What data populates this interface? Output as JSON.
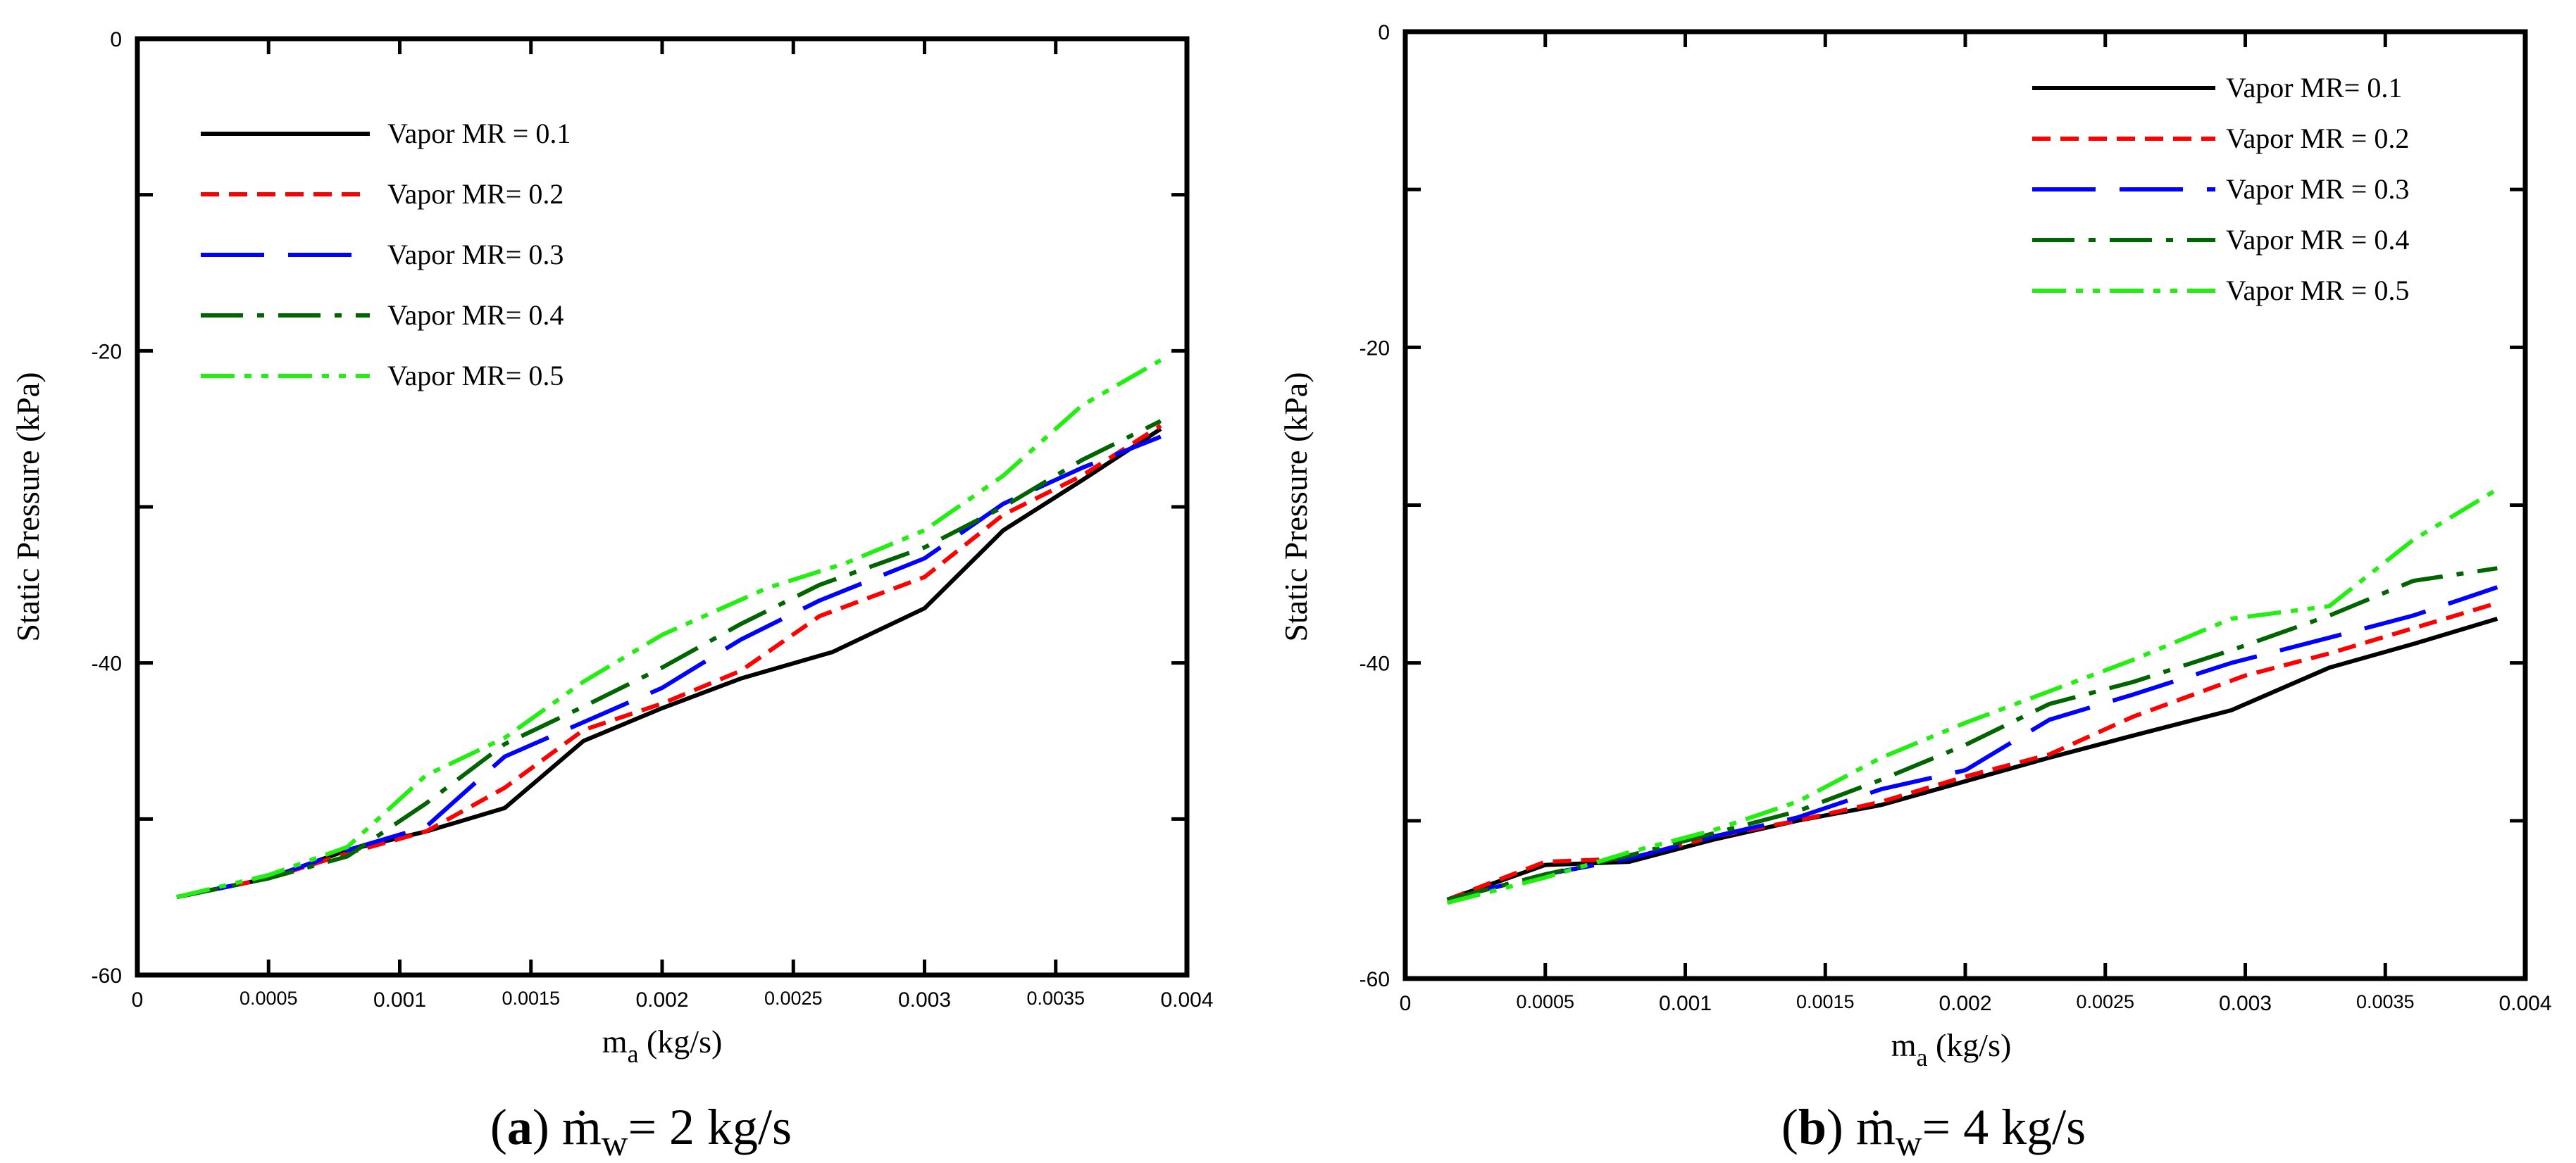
{
  "chart_data": [
    {
      "type": "line",
      "panel": "a",
      "xlabel": "m",
      "xlabel_sub": "a",
      "xlabel_unit": "(kg/s)",
      "ylabel": "Static Pressure (kPa)",
      "xlim": [
        0,
        0.004
      ],
      "ylim": [
        -60,
        0
      ],
      "x_ticks": [
        0,
        0.0005,
        0.001,
        0.0015,
        0.002,
        0.0025,
        0.003,
        0.0035,
        0.004
      ],
      "x_tick_labels": [
        "0",
        "0.0005",
        "0.001",
        "0.0015",
        "0.002",
        "0.0025",
        "0.003",
        "0.0035",
        "0.004"
      ],
      "y_ticks": [
        0,
        -10,
        -20,
        -30,
        -40,
        -50,
        -60
      ],
      "y_tick_labels": [
        "0",
        "",
        "-20",
        "",
        "-40",
        "",
        "-60"
      ],
      "caption": {
        "letter": "a",
        "text_pre": "m",
        "text_sub": "w",
        "text_post": "= 2 kg/s"
      },
      "legend_position": "top-left",
      "series": [
        {
          "name": "Vapor MR = 0.1",
          "color": "#000000",
          "dash": "",
          "x": [
            0.00015,
            0.0005,
            0.0008,
            0.0011,
            0.0014,
            0.0017,
            0.002,
            0.0023,
            0.00265,
            0.003,
            0.0033,
            0.0036,
            0.0039
          ],
          "y": [
            -55,
            -53.8,
            -52,
            -50.8,
            -49.3,
            -45,
            -42.9,
            -41,
            -39.3,
            -36.5,
            -31.5,
            -28.3,
            -25
          ]
        },
        {
          "name": "Vapor MR= 0.2",
          "color": "#ff0000",
          "dash": "26 14",
          "x": [
            0.00015,
            0.0005,
            0.0008,
            0.0011,
            0.0014,
            0.0017,
            0.002,
            0.0023,
            0.0026,
            0.003,
            0.0033,
            0.0036,
            0.0039
          ],
          "y": [
            -55,
            -53.8,
            -52.2,
            -50.8,
            -48,
            -44.3,
            -42.6,
            -40.5,
            -37,
            -34.5,
            -30.5,
            -28,
            -24.8
          ]
        },
        {
          "name": "Vapor MR= 0.3",
          "color": "#0000ff",
          "dash": "90 34",
          "x": [
            0.00015,
            0.0005,
            0.0008,
            0.0011,
            0.0014,
            0.0017,
            0.002,
            0.0023,
            0.0026,
            0.003,
            0.0033,
            0.0036,
            0.0039
          ],
          "y": [
            -55,
            -53.8,
            -52,
            -50.5,
            -46,
            -43.8,
            -41.6,
            -38.5,
            -36,
            -33.3,
            -29.8,
            -27.5,
            -25.5
          ]
        },
        {
          "name": "Vapor MR= 0.4",
          "color": "#006400",
          "dash": "60 20 10 20",
          "x": [
            0.00015,
            0.0005,
            0.0008,
            0.0011,
            0.0014,
            0.0017,
            0.002,
            0.0023,
            0.0026,
            0.003,
            0.0033,
            0.0036,
            0.0039
          ],
          "y": [
            -55,
            -53.8,
            -52.4,
            -49,
            -45.2,
            -42.8,
            -40.3,
            -37.5,
            -35,
            -32.6,
            -30,
            -27,
            -24.5
          ]
        },
        {
          "name": "Vapor MR= 0.5",
          "color": "#22ee11",
          "dash": "48 14 10 14 10 14",
          "x": [
            0.00015,
            0.0005,
            0.0008,
            0.0011,
            0.0014,
            0.0017,
            0.002,
            0.0024,
            0.0027,
            0.003,
            0.0033,
            0.0036,
            0.0039
          ],
          "y": [
            -55,
            -53.6,
            -51.8,
            -47.2,
            -44.8,
            -41.2,
            -38.2,
            -35.2,
            -33.6,
            -31.5,
            -28,
            -23.5,
            -20.6
          ]
        }
      ]
    },
    {
      "type": "line",
      "panel": "b",
      "xlabel": "m",
      "xlabel_sub": "a",
      "xlabel_unit": "(kg/s)",
      "ylabel": "Static Pressure (kPa)",
      "xlim": [
        0,
        0.004
      ],
      "ylim": [
        -60,
        0
      ],
      "x_ticks": [
        0,
        0.0005,
        0.001,
        0.0015,
        0.002,
        0.0025,
        0.003,
        0.0035,
        0.004
      ],
      "x_tick_labels": [
        "0",
        "0.0005",
        "0.001",
        "0.0015",
        "0.002",
        "0.0025",
        "0.003",
        "0.0035",
        "0.004"
      ],
      "y_ticks": [
        0,
        -10,
        -20,
        -30,
        -40,
        -50,
        -60
      ],
      "y_tick_labels": [
        "0",
        "",
        "-20",
        "",
        "-40",
        "",
        "-60"
      ],
      "caption": {
        "letter": "b",
        "text_pre": "m",
        "text_sub": "w",
        "text_post": "= 4 kg/s"
      },
      "legend_position": "top-right",
      "series": [
        {
          "name": "Vapor MR= 0.1",
          "color": "#000000",
          "dash": "",
          "x": [
            0.00015,
            0.0005,
            0.0008,
            0.0011,
            0.0014,
            0.0017,
            0.002,
            0.0023,
            0.0026,
            0.00295,
            0.0033,
            0.0036,
            0.0039
          ],
          "y": [
            -55,
            -52.8,
            -52.6,
            -51.2,
            -50,
            -49,
            -47.5,
            -46,
            -44.6,
            -43,
            -40.3,
            -38.8,
            -37.2
          ]
        },
        {
          "name": "Vapor MR = 0.2",
          "color": "#ff0000",
          "dash": "26 14",
          "x": [
            0.00015,
            0.0005,
            0.0008,
            0.0011,
            0.0014,
            0.0017,
            0.002,
            0.0023,
            0.0026,
            0.003,
            0.0033,
            0.0036,
            0.0039
          ],
          "y": [
            -55,
            -52.6,
            -52.4,
            -51,
            -50,
            -48.8,
            -47.2,
            -45.8,
            -43.4,
            -40.8,
            -39.4,
            -37.8,
            -36.2
          ]
        },
        {
          "name": "Vapor MR = 0.3",
          "color": "#0000ff",
          "dash": "90 34",
          "x": [
            0.00015,
            0.0005,
            0.0008,
            0.0011,
            0.0014,
            0.0017,
            0.002,
            0.0023,
            0.0026,
            0.00295,
            0.0033,
            0.0036,
            0.0039
          ],
          "y": [
            -55,
            -53.4,
            -52.4,
            -51,
            -49.8,
            -48,
            -46.8,
            -43.6,
            -42,
            -40,
            -38.4,
            -37,
            -35.2
          ]
        },
        {
          "name": "Vapor MR = 0.4",
          "color": "#006400",
          "dash": "60 20 10 20",
          "x": [
            0.00015,
            0.0005,
            0.0008,
            0.0011,
            0.0014,
            0.0017,
            0.002,
            0.0023,
            0.0026,
            0.00295,
            0.0033,
            0.0036,
            0.0039
          ],
          "y": [
            -55,
            -53.4,
            -52.2,
            -50.8,
            -49.4,
            -47.4,
            -45.2,
            -42.6,
            -41.2,
            -39.2,
            -37,
            -34.8,
            -34
          ]
        },
        {
          "name": "Vapor MR = 0.5",
          "color": "#22ee11",
          "dash": "48 14 10 14 10 14",
          "x": [
            0.00015,
            0.0005,
            0.0008,
            0.0011,
            0.0014,
            0.0017,
            0.002,
            0.0023,
            0.0026,
            0.00295,
            0.0033,
            0.0036,
            0.0039
          ],
          "y": [
            -55.2,
            -53.6,
            -52,
            -50.6,
            -48.8,
            -46,
            -43.8,
            -41.8,
            -39.8,
            -37.2,
            -36.4,
            -32.2,
            -29
          ]
        }
      ]
    }
  ]
}
